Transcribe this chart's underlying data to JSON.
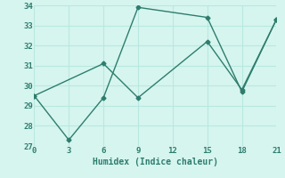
{
  "line1_x": [
    0,
    3,
    6,
    9,
    15,
    18,
    21
  ],
  "line1_y": [
    29.5,
    27.3,
    29.4,
    33.9,
    33.4,
    29.7,
    33.3
  ],
  "line2_x": [
    0,
    6,
    9,
    15,
    18,
    21
  ],
  "line2_y": [
    29.5,
    31.1,
    29.4,
    32.2,
    29.8,
    33.3
  ],
  "line_color": "#2e7d6e",
  "background_color": "#d6f5ef",
  "grid_color": "#b8e8e0",
  "xlabel": "Humidex (Indice chaleur)",
  "xlim": [
    0,
    21
  ],
  "ylim": [
    27,
    34
  ],
  "xticks": [
    0,
    3,
    6,
    9,
    12,
    15,
    18,
    21
  ],
  "yticks": [
    27,
    28,
    29,
    30,
    31,
    32,
    33,
    34
  ],
  "marker": "D",
  "markersize": 2.5,
  "linewidth": 1.0,
  "xlabel_fontsize": 7,
  "tick_fontsize": 6.5
}
